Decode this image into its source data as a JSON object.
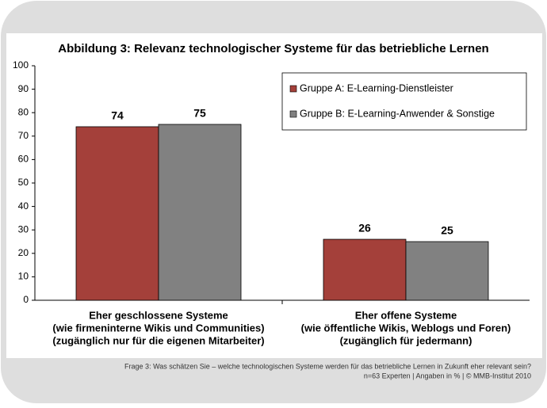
{
  "chart_data": {
    "type": "bar",
    "title": "Abbildung 3: Relevanz technologischer Systeme für das betriebliche Lernen",
    "categories": [
      [
        "Eher geschlossene Systeme",
        "(wie firmeninterne Wikis und Communities)",
        "(zugänglich nur für die eigenen Mitarbeiter)"
      ],
      [
        "Eher offene Systeme",
        "(wie öffentliche Wikis, Weblogs und Foren)",
        "(zugänglich für jedermann)"
      ]
    ],
    "series": [
      {
        "name": "Gruppe A: E-Learning-Dienstleister",
        "color": "#a4403a",
        "values": [
          74,
          26
        ]
      },
      {
        "name": "Gruppe B: E-Learning-Anwender & Sonstige",
        "color": "#818181",
        "values": [
          75,
          25
        ]
      }
    ],
    "ylim": [
      0,
      100
    ],
    "yticks": [
      0,
      10,
      20,
      30,
      40,
      50,
      60,
      70,
      80,
      90,
      100
    ],
    "grid": false,
    "legend": "upper right",
    "notes": [
      "Frage 3: Was schätzen Sie – welche technologischen Systeme werden für das betriebliche Lernen in Zukunft eher relevant sein?",
      "n=63 Experten | Angaben in % | © MMB-Institut 2010"
    ]
  }
}
